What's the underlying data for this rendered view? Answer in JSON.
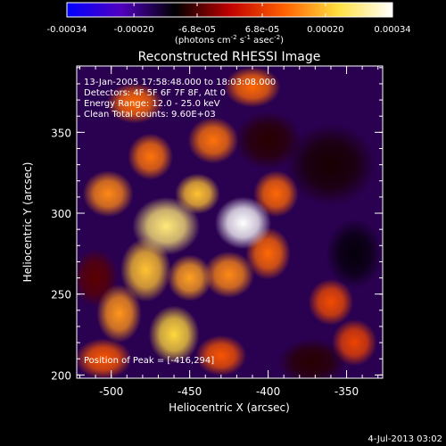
{
  "colorbar": {
    "tick_labels": [
      "-0.00034",
      "-0.00020",
      "-6.8e-05",
      "6.8e-05",
      "0.00020",
      "0.00034"
    ],
    "ticks": [
      -0.00034,
      -0.0002,
      -6.8e-05,
      6.8e-05,
      0.0002,
      0.00034
    ],
    "range": [
      -0.00034,
      0.00034
    ],
    "units_prefix": "(photons cm",
    "units_exp1": "-2",
    "units_mid1": " s",
    "units_exp2": "-1",
    "units_mid2": " asec",
    "units_exp3": "-2",
    "units_suffix": ")",
    "colors": [
      "#0000ff",
      "#5000c0",
      "#000000",
      "#c00000",
      "#ff6000",
      "#ffe040",
      "#ffffff"
    ]
  },
  "info": {
    "line1": "13-Jan-2005 17:58:48.000 to 18:03:08.000",
    "line2": "Detectors: 4F 5F 6F 7F 8F, Att 0",
    "line3": "Energy Range: 12.0 - 25.0 keV",
    "line4": "Clean    Total counts: 9.60E+03",
    "peak": "Position of Peak = [-416,294]"
  },
  "footer": {
    "date": "4-Jul-2013 03:02"
  },
  "chart_data": {
    "type": "heatmap",
    "title": "Reconstructed RHESSI Image",
    "xlabel": "Heliocentric X (arcsec)",
    "ylabel": "Heliocentric Y (arcsec)",
    "xlim": [
      -522,
      -327
    ],
    "ylim": [
      198,
      391
    ],
    "xticks": [
      -500,
      -450,
      -400,
      -350
    ],
    "yticks": [
      200,
      250,
      300,
      350
    ],
    "xtick_labels": [
      "-500",
      "-450",
      "-400",
      "-350"
    ],
    "ytick_labels": [
      "200",
      "250",
      "300",
      "350"
    ],
    "peak_position": [
      -416,
      294
    ],
    "sources": [
      {
        "x": -416,
        "y": 294,
        "value": 0.00034,
        "sx": 10,
        "sy": 9
      },
      {
        "x": -465,
        "y": 292,
        "value": 0.00026,
        "sx": 12,
        "sy": 10
      },
      {
        "x": -445,
        "y": 312,
        "value": 0.0002,
        "sx": 8,
        "sy": 7
      },
      {
        "x": -478,
        "y": 265,
        "value": 0.0002,
        "sx": 9,
        "sy": 11
      },
      {
        "x": -495,
        "y": 238,
        "value": 0.00016,
        "sx": 8,
        "sy": 10
      },
      {
        "x": -460,
        "y": 225,
        "value": 0.00022,
        "sx": 9,
        "sy": 10
      },
      {
        "x": -450,
        "y": 260,
        "value": 0.00017,
        "sx": 8,
        "sy": 8
      },
      {
        "x": -425,
        "y": 262,
        "value": 0.00015,
        "sx": 9,
        "sy": 8
      },
      {
        "x": -400,
        "y": 275,
        "value": 0.00012,
        "sx": 8,
        "sy": 9
      },
      {
        "x": -395,
        "y": 312,
        "value": 0.00012,
        "sx": 8,
        "sy": 8
      },
      {
        "x": -502,
        "y": 312,
        "value": 0.00015,
        "sx": 9,
        "sy": 8
      },
      {
        "x": -475,
        "y": 335,
        "value": 0.00013,
        "sx": 8,
        "sy": 8
      },
      {
        "x": -435,
        "y": 345,
        "value": 0.00013,
        "sx": 9,
        "sy": 8
      },
      {
        "x": -485,
        "y": 368,
        "value": 0.00012,
        "sx": 10,
        "sy": 7
      },
      {
        "x": -410,
        "y": 378,
        "value": 0.00012,
        "sx": 10,
        "sy": 7
      },
      {
        "x": -505,
        "y": 210,
        "value": 0.0001,
        "sx": 10,
        "sy": 7
      },
      {
        "x": -430,
        "y": 212,
        "value": 0.0001,
        "sx": 9,
        "sy": 7
      },
      {
        "x": -360,
        "y": 245,
        "value": 9e-05,
        "sx": 8,
        "sy": 8
      },
      {
        "x": -345,
        "y": 220,
        "value": 8e-05,
        "sx": 8,
        "sy": 8
      },
      {
        "x": -360,
        "y": 330,
        "value": -0.0001,
        "sx": 16,
        "sy": 14
      },
      {
        "x": -345,
        "y": 275,
        "value": -0.00012,
        "sx": 10,
        "sy": 12
      },
      {
        "x": -400,
        "y": 345,
        "value": -9e-05,
        "sx": 12,
        "sy": 10
      },
      {
        "x": -510,
        "y": 260,
        "value": -6e-05,
        "sx": 8,
        "sy": 10
      },
      {
        "x": -372,
        "y": 208,
        "value": -9e-05,
        "sx": 12,
        "sy": 8
      }
    ]
  }
}
